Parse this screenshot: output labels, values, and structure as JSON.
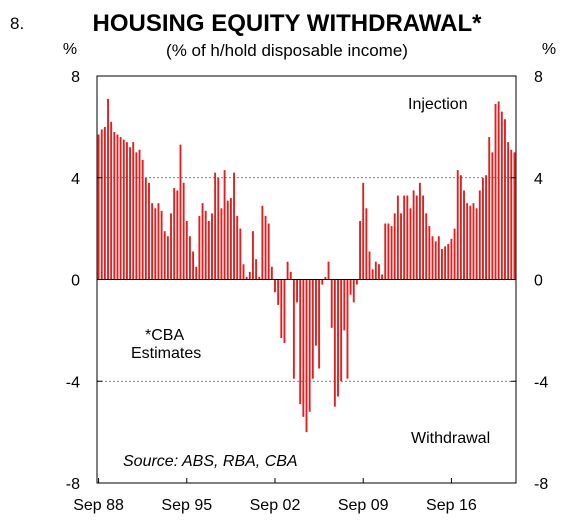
{
  "figure_number": "8.",
  "chart_data": {
    "type": "bar",
    "title": "HOUSING EQUITY WITHDRAWAL*",
    "subtitle": "(% of h/hold disposable income)",
    "ylabel_left": "%",
    "ylabel_right": "%",
    "ylim": [
      -8,
      8
    ],
    "yticks": [
      -8,
      -4,
      0,
      4,
      8
    ],
    "yticks_right": [
      -8,
      -4,
      0,
      4,
      8
    ],
    "gridlines": [
      -4,
      4
    ],
    "xtick_labels": [
      "Sep 88",
      "Sep 95",
      "Sep 02",
      "Sep 09",
      "Sep 16"
    ],
    "x_start": "Sep 88",
    "frequency": "quarterly",
    "bar_color": "#e02020",
    "annotations": {
      "injection": "Injection",
      "withdrawal": "Withdrawal",
      "note_line1": "*CBA",
      "note_line2": "Estimates",
      "source": "Source: ABS, RBA, CBA"
    },
    "values": [
      5.7,
      5.9,
      6.0,
      7.1,
      6.2,
      5.8,
      5.7,
      5.6,
      5.5,
      5.4,
      5.2,
      5.4,
      5.0,
      5.1,
      4.7,
      4.0,
      3.8,
      3.0,
      2.8,
      3.0,
      2.7,
      1.9,
      1.7,
      2.6,
      3.6,
      3.5,
      5.3,
      3.8,
      2.3,
      1.7,
      1.1,
      0.5,
      2.5,
      3.0,
      2.7,
      2.3,
      2.6,
      4.2,
      4.0,
      2.8,
      4.3,
      3.1,
      3.2,
      4.2,
      2.5,
      2.0,
      0.6,
      0.1,
      0.3,
      1.9,
      0.8,
      0.1,
      2.9,
      2.5,
      2.2,
      0.5,
      -0.5,
      -1.0,
      -2.3,
      -2.5,
      0.7,
      0.3,
      -3.9,
      -0.9,
      -4.9,
      -5.4,
      -6.0,
      -5.2,
      -3.9,
      -2.6,
      -3.5,
      -0.2,
      0.1,
      0.7,
      -1.9,
      -5.0,
      -4.6,
      -4.0,
      -2.0,
      -3.9,
      -0.6,
      -0.9,
      -0.2,
      2.3,
      3.8,
      2.8,
      1.1,
      0.4,
      0.7,
      0.6,
      0.2,
      2.2,
      2.2,
      2.1,
      2.6,
      3.3,
      2.6,
      3.3,
      3.3,
      2.8,
      3.5,
      3.3,
      3.8,
      3.3,
      2.6,
      2.1,
      1.7,
      1.5,
      1.7,
      1.2,
      1.3,
      1.4,
      1.6,
      2.0,
      4.3,
      4.1,
      3.5,
      3.0,
      2.9,
      3.0,
      2.8,
      3.5,
      4.0,
      4.1,
      5.6,
      5.0,
      6.9,
      7.0,
      6.6,
      6.3,
      5.4,
      5.1,
      5.0
    ]
  }
}
